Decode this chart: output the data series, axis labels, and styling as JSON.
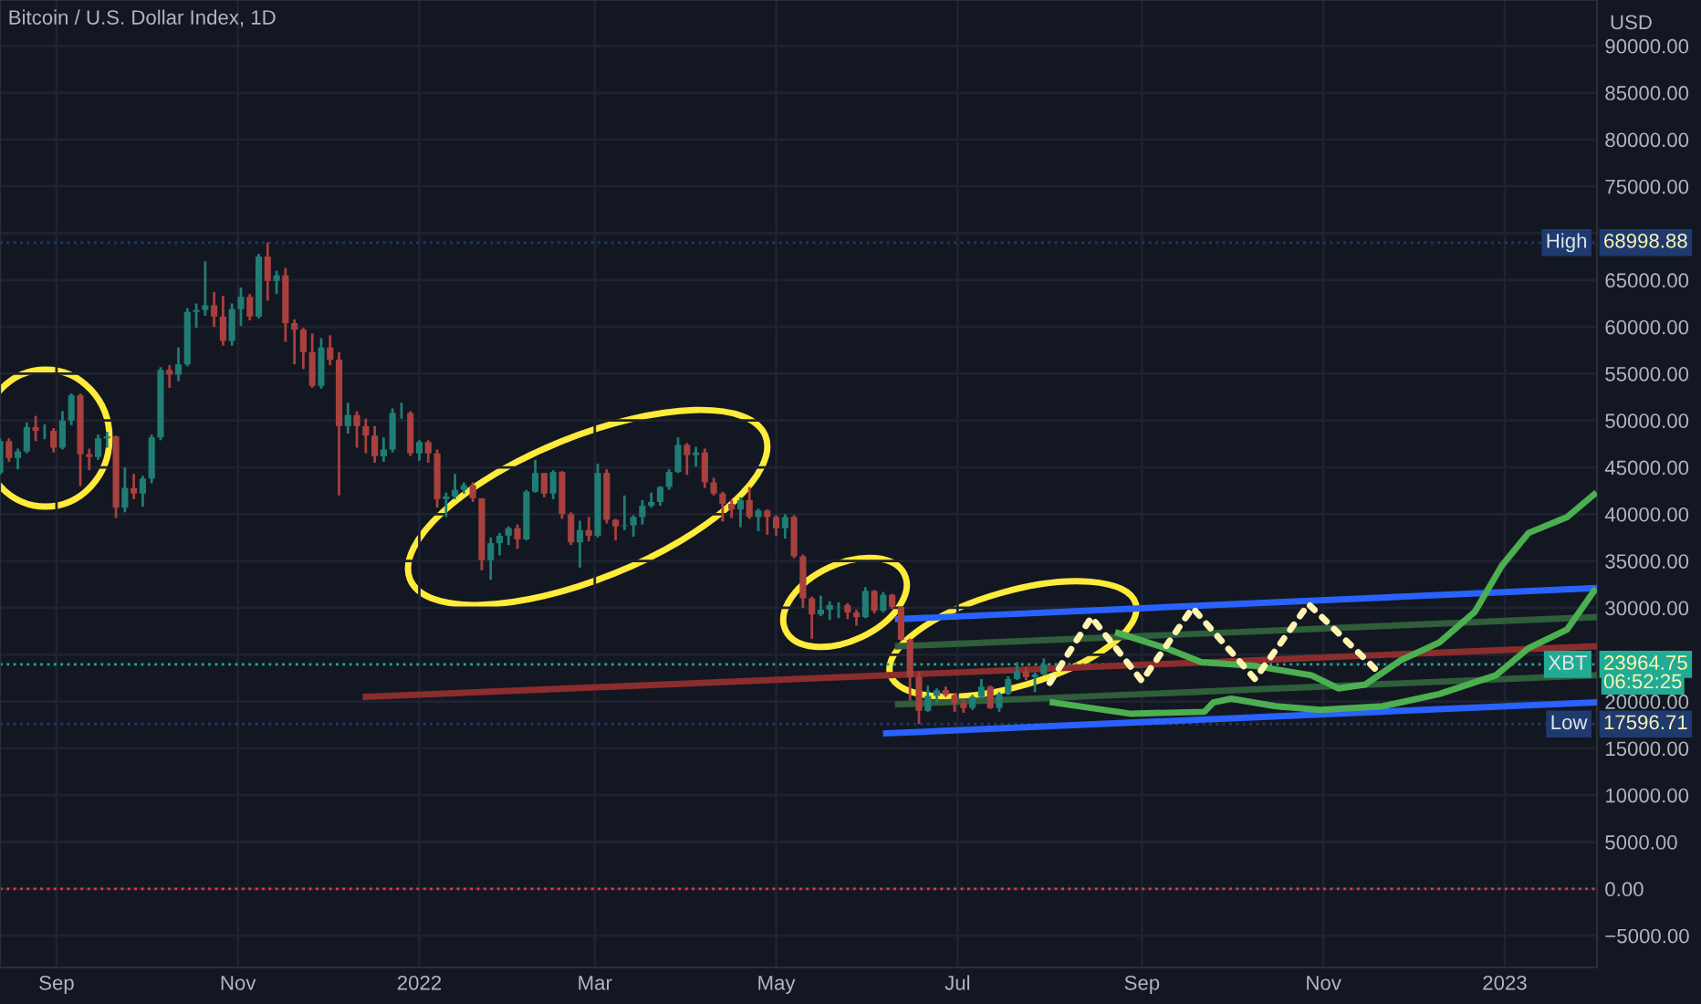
{
  "chart_data": {
    "type": "candlestick",
    "title": "Bitcoin / U.S. Dollar Index, 1D",
    "ylabel": "USD",
    "x": [
      "2021-08-13",
      "2021-08-16",
      "2021-08-19",
      "2021-08-22",
      "2021-08-25",
      "2021-08-28",
      "2021-08-31",
      "2021-09-03",
      "2021-09-06",
      "2021-09-09",
      "2021-09-12",
      "2021-09-15",
      "2021-09-18",
      "2021-09-21",
      "2021-09-24",
      "2021-09-27",
      "2021-09-30",
      "2021-10-03",
      "2021-10-06",
      "2021-10-09",
      "2021-10-12",
      "2021-10-15",
      "2021-10-18",
      "2021-10-21",
      "2021-10-24",
      "2021-10-27",
      "2021-10-30",
      "2021-11-02",
      "2021-11-05",
      "2021-11-08",
      "2021-11-11",
      "2021-11-14",
      "2021-11-17",
      "2021-11-20",
      "2021-11-23",
      "2021-11-26",
      "2021-11-29",
      "2021-12-02",
      "2021-12-05",
      "2021-12-08",
      "2021-12-11",
      "2021-12-14",
      "2021-12-17",
      "2021-12-20",
      "2021-12-23",
      "2021-12-26",
      "2021-12-29",
      "2022-01-01",
      "2022-01-04",
      "2022-01-07",
      "2022-01-10",
      "2022-01-13",
      "2022-01-16",
      "2022-01-19",
      "2022-01-22",
      "2022-01-25",
      "2022-01-28",
      "2022-01-31",
      "2022-02-03",
      "2022-02-06",
      "2022-02-09",
      "2022-02-12",
      "2022-02-15",
      "2022-02-18",
      "2022-02-21",
      "2022-02-24",
      "2022-02-27",
      "2022-03-02",
      "2022-03-05",
      "2022-03-08",
      "2022-03-11",
      "2022-03-14",
      "2022-03-17",
      "2022-03-20",
      "2022-03-23",
      "2022-03-26",
      "2022-03-29",
      "2022-04-01",
      "2022-04-04",
      "2022-04-07",
      "2022-04-10",
      "2022-04-13",
      "2022-04-16",
      "2022-04-19",
      "2022-04-22",
      "2022-04-25",
      "2022-04-28",
      "2022-05-01",
      "2022-05-04",
      "2022-05-07",
      "2022-05-10",
      "2022-05-13",
      "2022-05-16",
      "2022-05-19",
      "2022-05-22",
      "2022-05-25",
      "2022-05-28",
      "2022-05-31",
      "2022-06-03",
      "2022-06-06",
      "2022-06-09",
      "2022-06-12",
      "2022-06-15",
      "2022-06-18",
      "2022-06-21",
      "2022-06-24",
      "2022-06-27",
      "2022-06-30",
      "2022-07-03",
      "2022-07-06",
      "2022-07-09",
      "2022-07-12",
      "2022-07-15",
      "2022-07-18",
      "2022-07-21",
      "2022-07-24",
      "2022-07-27",
      "2022-07-30"
    ],
    "ohlc": [
      [
        44400,
        48100,
        44200,
        47800
      ],
      [
        47800,
        48100,
        45600,
        46000
      ],
      [
        46000,
        47000,
        44800,
        46700
      ],
      [
        46700,
        49800,
        46500,
        49300
      ],
      [
        49300,
        50500,
        47800,
        48900
      ],
      [
        48900,
        49600,
        48000,
        48900
      ],
      [
        48900,
        49200,
        46600,
        47100
      ],
      [
        47100,
        51000,
        46900,
        50000
      ],
      [
        50000,
        52900,
        49500,
        52700
      ],
      [
        52700,
        52900,
        43000,
        46400
      ],
      [
        46400,
        47000,
        44700,
        46100
      ],
      [
        46100,
        48500,
        45800,
        48100
      ],
      [
        48100,
        48800,
        47100,
        48300
      ],
      [
        48300,
        48400,
        39600,
        40700
      ],
      [
        40700,
        45000,
        40200,
        42800
      ],
      [
        42800,
        44300,
        41600,
        42200
      ],
      [
        42200,
        44100,
        40800,
        43800
      ],
      [
        43800,
        48500,
        43300,
        48200
      ],
      [
        48200,
        55700,
        47900,
        55400
      ],
      [
        55400,
        55900,
        53500,
        54900
      ],
      [
        54900,
        57800,
        54200,
        56000
      ],
      [
        56000,
        62000,
        55800,
        61600
      ],
      [
        61600,
        62500,
        59900,
        61800
      ],
      [
        61800,
        67000,
        61200,
        62300
      ],
      [
        62300,
        63700,
        60000,
        61100
      ],
      [
        61100,
        63300,
        58000,
        58500
      ],
      [
        58500,
        62500,
        58000,
        61900
      ],
      [
        61900,
        64200,
        60100,
        63200
      ],
      [
        63200,
        63500,
        60700,
        61100
      ],
      [
        61100,
        67800,
        60900,
        67500
      ],
      [
        67500,
        68998.88,
        62800,
        64900
      ],
      [
        64900,
        66000,
        63500,
        65500
      ],
      [
        65500,
        66300,
        58400,
        60400
      ],
      [
        60400,
        60800,
        56000,
        59700
      ],
      [
        59700,
        59900,
        55500,
        57300
      ],
      [
        57300,
        59300,
        53500,
        53700
      ],
      [
        53700,
        58800,
        53400,
        57800
      ],
      [
        57800,
        59100,
        55900,
        56500
      ],
      [
        56500,
        57300,
        42000,
        49400
      ],
      [
        49400,
        51900,
        48600,
        50600
      ],
      [
        50600,
        51000,
        47100,
        49400
      ],
      [
        49400,
        50200,
        46500,
        48400
      ],
      [
        48400,
        49400,
        45500,
        46200
      ],
      [
        46200,
        48200,
        45600,
        46900
      ],
      [
        46900,
        51300,
        46600,
        50800
      ],
      [
        50800,
        51900,
        50200,
        50800
      ],
      [
        50800,
        51000,
        46200,
        46500
      ],
      [
        46500,
        47900,
        45700,
        47700
      ],
      [
        47700,
        47900,
        45500,
        46500
      ],
      [
        46500,
        46900,
        40700,
        41600
      ],
      [
        41600,
        42300,
        39700,
        41900
      ],
      [
        41900,
        44300,
        41600,
        42600
      ],
      [
        42600,
        43400,
        42200,
        43100
      ],
      [
        43100,
        43400,
        41300,
        41700
      ],
      [
        41700,
        41700,
        34000,
        35100
      ],
      [
        35100,
        37500,
        33000,
        36900
      ],
      [
        36900,
        38000,
        35600,
        37700
      ],
      [
        37700,
        38700,
        36700,
        38500
      ],
      [
        38500,
        38900,
        36300,
        37300
      ],
      [
        37300,
        42600,
        37200,
        42400
      ],
      [
        42400,
        45800,
        42300,
        44400
      ],
      [
        44400,
        44400,
        41800,
        42200
      ],
      [
        42200,
        44700,
        41600,
        44500
      ],
      [
        44500,
        44600,
        39500,
        40000
      ],
      [
        40000,
        40200,
        36700,
        37000
      ],
      [
        37000,
        39300,
        34300,
        38300
      ],
      [
        38300,
        39700,
        37100,
        37700
      ],
      [
        37700,
        45400,
        37500,
        44400
      ],
      [
        44400,
        44800,
        39000,
        39400
      ],
      [
        39400,
        39500,
        37200,
        38700
      ],
      [
        38700,
        42000,
        38300,
        38800
      ],
      [
        38800,
        39900,
        37600,
        39700
      ],
      [
        39700,
        41500,
        38900,
        40900
      ],
      [
        40900,
        42300,
        40700,
        41300
      ],
      [
        41300,
        43000,
        40900,
        42900
      ],
      [
        42900,
        44800,
        42600,
        44500
      ],
      [
        44500,
        48200,
        44400,
        47400
      ],
      [
        47400,
        47600,
        44200,
        46300
      ],
      [
        46300,
        47200,
        45100,
        46600
      ],
      [
        46600,
        47000,
        42800,
        43400
      ],
      [
        43400,
        43900,
        42000,
        42200
      ],
      [
        42200,
        42400,
        39200,
        41100
      ],
      [
        41100,
        41500,
        39600,
        40500
      ],
      [
        40500,
        41800,
        38600,
        41500
      ],
      [
        41500,
        42900,
        39500,
        39700
      ],
      [
        39700,
        40600,
        38200,
        40400
      ],
      [
        40400,
        40500,
        37800,
        39700
      ],
      [
        39700,
        39900,
        37700,
        38500
      ],
      [
        38500,
        40000,
        37400,
        39700
      ],
      [
        39700,
        39900,
        35300,
        35500
      ],
      [
        35500,
        35700,
        30000,
        31000
      ],
      [
        31000,
        31200,
        26700,
        29300
      ],
      [
        29300,
        31300,
        29100,
        29800
      ],
      [
        29800,
        30700,
        28700,
        30300
      ],
      [
        30300,
        30600,
        28900,
        30300
      ],
      [
        30300,
        30500,
        28800,
        29500
      ],
      [
        29500,
        29800,
        28100,
        29000
      ],
      [
        29000,
        32200,
        28900,
        31800
      ],
      [
        31800,
        31900,
        29400,
        29700
      ],
      [
        29700,
        31700,
        29500,
        31400
      ],
      [
        31400,
        31500,
        29900,
        30100
      ],
      [
        30100,
        30100,
        26500,
        26600
      ],
      [
        26600,
        26700,
        20100,
        22600
      ],
      [
        22600,
        23200,
        17596.71,
        19000
      ],
      [
        19000,
        21700,
        18900,
        20600
      ],
      [
        20600,
        21400,
        19800,
        21200
      ],
      [
        21200,
        21600,
        20500,
        20700
      ],
      [
        20700,
        20900,
        18900,
        19800
      ],
      [
        19800,
        20200,
        18800,
        19300
      ],
      [
        19300,
        20700,
        19100,
        20500
      ],
      [
        20500,
        22400,
        20300,
        21600
      ],
      [
        21600,
        21700,
        19200,
        19300
      ],
      [
        19300,
        21000,
        18900,
        20800
      ],
      [
        20800,
        22700,
        20700,
        22400
      ],
      [
        22400,
        24200,
        22300,
        23200
      ],
      [
        23200,
        23700,
        22300,
        22600
      ],
      [
        22600,
        23100,
        21000,
        22900
      ],
      [
        22900,
        24600,
        22800,
        23964.75
      ]
    ],
    "series": [
      {
        "type": "line",
        "color": "#8b2d2d",
        "x": [
          "2021-12-14",
          "2023-01-31"
        ],
        "values": [
          20500,
          25900
        ]
      },
      {
        "type": "line",
        "color": "#2e5e3a",
        "x": [
          "2022-06-11",
          "2023-01-31"
        ],
        "values": [
          25900,
          29000
        ]
      },
      {
        "type": "line",
        "color": "#2e5e3a",
        "x": [
          "2022-06-11",
          "2023-01-31"
        ],
        "values": [
          19700,
          22800
        ]
      },
      {
        "type": "line",
        "color": "#2962ff",
        "x": [
          "2022-06-11",
          "2023-01-31"
        ],
        "values": [
          28800,
          32100
        ]
      },
      {
        "type": "line",
        "color": "#2962ff",
        "x": [
          "2022-06-07",
          "2023-01-31"
        ],
        "values": [
          16600,
          19900
        ]
      },
      {
        "type": "line",
        "color": "#4caf50",
        "x": [
          "2022-08-24",
          "2022-09-09",
          "2022-09-21",
          "2022-10-09",
          "2022-10-28",
          "2022-11-06",
          "2022-11-15",
          "2022-11-27",
          "2022-12-10",
          "2022-12-22",
          "2022-12-31",
          "2023-01-09",
          "2023-01-22",
          "2023-01-31"
        ],
        "values": [
          27300,
          25700,
          24200,
          23800,
          22800,
          21400,
          21800,
          24400,
          26300,
          29600,
          34500,
          38000,
          39700,
          42100
        ]
      },
      {
        "type": "line",
        "color": "#4caf50",
        "x": [
          "2022-08-02",
          "2022-08-28",
          "2022-09-22",
          "2022-09-25",
          "2022-10-01",
          "2022-10-16",
          "2022-10-31",
          "2022-11-21",
          "2022-12-10",
          "2022-12-29",
          "2023-01-09",
          "2023-01-22",
          "2023-01-31"
        ],
        "values": [
          19900,
          18700,
          18900,
          19900,
          20300,
          19500,
          19100,
          19500,
          20800,
          22800,
          25700,
          27700,
          31800
        ]
      },
      {
        "type": "line",
        "color": "#fff3b0",
        "line_style": "dotted",
        "x": [
          "2022-08-01",
          "2022-08-15",
          "2022-09-01",
          "2022-09-18",
          "2022-10-09",
          "2022-10-27",
          "2022-11-20"
        ],
        "values": [
          22000,
          29000,
          22200,
          30000,
          22400,
          30400,
          23000
        ]
      }
    ],
    "ref_lines": [
      {
        "axis": "y",
        "value": 68998.88,
        "label": "High",
        "color": "#1e3a6e",
        "line_style": "dotted"
      },
      {
        "axis": "y",
        "value": 17596.71,
        "label": "Low",
        "color": "#1e3a6e",
        "line_style": "dotted"
      },
      {
        "axis": "y",
        "value": 23964.75,
        "label": "XBT",
        "color": "#22ab94",
        "line_style": "dotted"
      },
      {
        "axis": "y",
        "value": 0,
        "color": "#f23645",
        "line_style": "dotted"
      }
    ],
    "annotations": [
      "06:52:25",
      "68998.88",
      "17596.71",
      "23964.75"
    ],
    "xlim": [
      "2021-08-13",
      "2023-02-01"
    ],
    "xticks": [
      {
        "value": "2021-09-01",
        "label": "Sep"
      },
      {
        "value": "2021-11-01",
        "label": "Nov"
      },
      {
        "value": "2022-01-01",
        "label": "2022"
      },
      {
        "value": "2022-03-01",
        "label": "Mar"
      },
      {
        "value": "2022-05-01",
        "label": "May"
      },
      {
        "value": "2022-07-01",
        "label": "Jul"
      },
      {
        "value": "2022-09-01",
        "label": "Sep"
      },
      {
        "value": "2022-11-01",
        "label": "Nov"
      },
      {
        "value": "2023-01-01",
        "label": "2023"
      }
    ],
    "ylim": [
      -8400,
      94900
    ],
    "yticks": [
      {
        "value": -5000,
        "label": "−5000.00"
      },
      {
        "value": 0,
        "label": "0.00"
      },
      {
        "value": 5000,
        "label": "5000.00"
      },
      {
        "value": 10000,
        "label": "10000.00"
      },
      {
        "value": 15000,
        "label": "15000.00"
      },
      {
        "value": 20000,
        "label": "20000.00"
      },
      {
        "value": 25000,
        "label": null
      },
      {
        "value": 30000,
        "label": "30000.00"
      },
      {
        "value": 35000,
        "label": "35000.00"
      },
      {
        "value": 40000,
        "label": "40000.00"
      },
      {
        "value": 45000,
        "label": "45000.00"
      },
      {
        "value": 50000,
        "label": "50000.00"
      },
      {
        "value": 55000,
        "label": "55000.00"
      },
      {
        "value": 60000,
        "label": "60000.00"
      },
      {
        "value": 65000,
        "label": "65000.00"
      },
      {
        "value": 70000,
        "label": null
      },
      {
        "value": 75000,
        "label": "75000.00"
      },
      {
        "value": 80000,
        "label": "80000.00"
      },
      {
        "value": 85000,
        "label": "85000.00"
      },
      {
        "value": 90000,
        "label": "90000.00"
      }
    ],
    "grid": true
  }
}
